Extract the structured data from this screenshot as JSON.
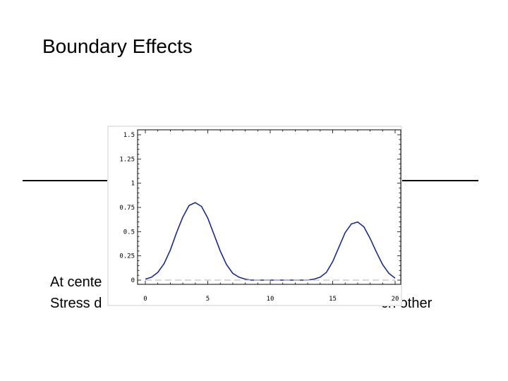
{
  "slide": {
    "title": "Boundary Effects",
    "body_line_1": "At cente",
    "body_line_2": "Stress d",
    "body_line_2_tail": "ch other"
  },
  "chart_data": {
    "type": "line",
    "title": "",
    "xlabel": "",
    "ylabel": "",
    "xlim": [
      0,
      20
    ],
    "ylim": [
      0,
      1.5
    ],
    "x_ticks": [
      0,
      5,
      10,
      15,
      20
    ],
    "x_tick_labels": [
      "0",
      "5",
      "10",
      "15",
      "20"
    ],
    "y_ticks": [
      0,
      0.25,
      0.5,
      0.75,
      1,
      1.25,
      1.5
    ],
    "y_tick_labels": [
      "0",
      "0.25",
      "0.5",
      "0.75",
      "1",
      "1.25",
      "1.5"
    ],
    "grid": false,
    "series": [
      {
        "color": "#1a2a8c",
        "x": [
          0,
          0.5,
          1,
          1.5,
          2,
          2.5,
          3,
          3.5,
          4,
          4.5,
          5,
          5.5,
          6,
          6.5,
          7,
          7.5,
          8,
          8.5,
          9,
          10,
          11,
          12,
          13,
          13.5,
          14,
          14.5,
          15,
          15.5,
          16,
          16.5,
          17,
          17.5,
          18,
          18.5,
          19,
          19.5,
          20
        ],
        "y": [
          0.01,
          0.03,
          0.08,
          0.17,
          0.31,
          0.49,
          0.65,
          0.77,
          0.8,
          0.76,
          0.64,
          0.47,
          0.3,
          0.16,
          0.07,
          0.03,
          0.01,
          0.0,
          0.0,
          0.0,
          0.0,
          0.0,
          0.0,
          0.01,
          0.03,
          0.08,
          0.19,
          0.34,
          0.49,
          0.58,
          0.6,
          0.55,
          0.43,
          0.29,
          0.16,
          0.07,
          0.02
        ]
      },
      {
        "color": "#c0c0c0",
        "dashed": true,
        "x": [
          0,
          20
        ],
        "y": [
          0,
          0
        ]
      }
    ]
  }
}
